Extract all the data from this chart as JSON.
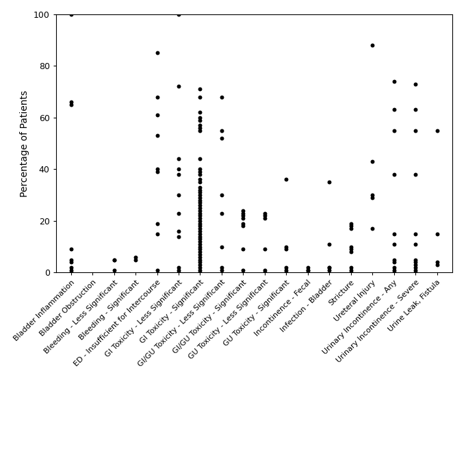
{
  "categories": [
    "Bladder Inflammation",
    "Bladder Obstruction",
    "Bleeding - Less Significant",
    "Bleeding - Significant",
    "ED - Insufficient for Intercourse",
    "GI Toxicity - Less Significant",
    "GI Toxicity - Significant",
    "GI/GU Toxicity - Less Significant",
    "GI/GU Toxicity - Significant",
    "GU Toxicity - Less Significant",
    "GU Toxicity - Significant",
    "Incontinence - Fecal",
    "Infection - Bladder",
    "Stricture",
    "Ureteral Injury",
    "Urinary Incontinence - Any",
    "Urinary Incontinence - Severe",
    "Urine Leak, Fistula"
  ],
  "category_data": {
    "Bladder Inflammation": [
      100,
      65,
      66,
      9,
      5,
      4,
      2,
      1,
      0
    ],
    "Bladder Obstruction": [],
    "Bleeding - Less Significant": [
      5,
      5,
      1
    ],
    "Bleeding - Significant": [
      6,
      5
    ],
    "ED - Insufficient for Intercourse": [
      85,
      68,
      61,
      53,
      40,
      39,
      19,
      15,
      1
    ],
    "GI Toxicity - Less Significant": [
      100,
      72,
      44,
      40,
      38,
      30,
      23,
      16,
      14,
      2,
      1,
      0
    ],
    "GI Toxicity - Significant": [
      71,
      68,
      62,
      60,
      59,
      57,
      56,
      55,
      44,
      40,
      39,
      38,
      36,
      35,
      33,
      32,
      31,
      30,
      29,
      28,
      27,
      26,
      25,
      24,
      23,
      22,
      21,
      20,
      19,
      18,
      17,
      16,
      15,
      14,
      13,
      12,
      11,
      10,
      9,
      8,
      7,
      6,
      5,
      4,
      3,
      2,
      1,
      0
    ],
    "GI/GU Toxicity - Less Significant": [
      68,
      55,
      52,
      30,
      23,
      10,
      2,
      1
    ],
    "GI/GU Toxicity - Significant": [
      24,
      23,
      22,
      21,
      19,
      18,
      9,
      1
    ],
    "GU Toxicity - Less Significant": [
      23,
      22,
      21,
      9,
      1,
      0
    ],
    "GU Toxicity - Significant": [
      36,
      10,
      9,
      2,
      1,
      0
    ],
    "Incontinence - Fecal": [
      2,
      1,
      1,
      0
    ],
    "Infection - Bladder": [
      35,
      11,
      2,
      2,
      1
    ],
    "Stricture": [
      19,
      18,
      17,
      10,
      9,
      8,
      2,
      1,
      0
    ],
    "Ureteral Injury": [
      88,
      43,
      30,
      29,
      17
    ],
    "Urinary Incontinence - Any": [
      74,
      63,
      55,
      38,
      15,
      11,
      5,
      4,
      2,
      1,
      0
    ],
    "Urinary Incontinence - Severe": [
      73,
      63,
      55,
      38,
      15,
      11,
      5,
      4,
      3,
      2,
      1,
      0
    ],
    "Urine Leak, Fistula": [
      55,
      15,
      4,
      3
    ]
  },
  "ylabel": "Percentage of Patients",
  "ylim": [
    0,
    100
  ],
  "yticks": [
    0,
    20,
    40,
    60,
    80,
    100
  ],
  "dot_color": "#000000",
  "dot_size": 18,
  "background_color": "#ffffff",
  "tick_label_fontsize": 8,
  "ylabel_fontsize": 10
}
